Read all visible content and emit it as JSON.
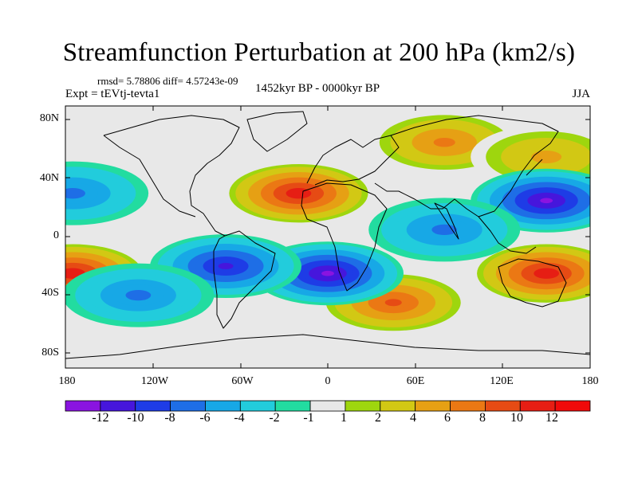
{
  "title": "Streamfunction Perturbation at 200 hPa (km2/s)",
  "stats": "rmsd= 5.78806 diff= 4.57243e-09",
  "experiment": "Expt = tEVtj-tevta1",
  "period": "1452kyr BP - 0000kyr BP",
  "season": "JJA",
  "lat_ticks": [
    "80N",
    "40N",
    "0",
    "40S",
    "80S"
  ],
  "lon_ticks": [
    "180",
    "120W",
    "60W",
    "0",
    "60E",
    "120E",
    "180"
  ],
  "colorbar": {
    "labels": [
      "-12",
      "-10",
      "-8",
      "-6",
      "-4",
      "-2",
      "-1",
      "1",
      "2",
      "4",
      "6",
      "8",
      "10",
      "12"
    ],
    "colors": [
      "#8a14e0",
      "#4616dc",
      "#1e3ce6",
      "#1e6ee6",
      "#17a8e6",
      "#22ccdc",
      "#22dca0",
      "#e8e8e8",
      "#9ed60e",
      "#d2c814",
      "#e6a014",
      "#eb7814",
      "#e64b14",
      "#e61e14",
      "#f00a0a"
    ]
  },
  "chart_data": {
    "type": "heatmap",
    "title": "Streamfunction Perturbation at 200 hPa (km2/s)",
    "x_axis": {
      "ticks": [
        "180",
        "120W",
        "60W",
        "0",
        "60E",
        "120E",
        "180"
      ],
      "range": [
        -180,
        180
      ]
    },
    "y_axis": {
      "ticks": [
        "80N",
        "40N",
        "0",
        "40S",
        "80S"
      ],
      "range": [
        -90,
        90
      ]
    },
    "levels": [
      -12,
      -10,
      -8,
      -6,
      -4,
      -2,
      -1,
      1,
      2,
      4,
      6,
      8,
      10,
      12
    ],
    "features": [
      {
        "name": "positive max",
        "lon": -20,
        "lat": 30,
        "value": 12
      },
      {
        "name": "positive max",
        "lon": 150,
        "lat": -25,
        "value": 12
      },
      {
        "name": "positive max",
        "lon": -175,
        "lat": -25,
        "value": 12
      },
      {
        "name": "positive",
        "lon": 80,
        "lat": 65,
        "value": 7
      },
      {
        "name": "positive",
        "lon": 45,
        "lat": -45,
        "value": 9
      },
      {
        "name": "positive",
        "lon": 150,
        "lat": 55,
        "value": 5
      },
      {
        "name": "negative min",
        "lon": 150,
        "lat": 25,
        "value": -12
      },
      {
        "name": "negative min",
        "lon": 0,
        "lat": -25,
        "value": -12
      },
      {
        "name": "negative",
        "lon": -70,
        "lat": -20,
        "value": -10
      },
      {
        "name": "negative",
        "lon": -175,
        "lat": 30,
        "value": -6
      },
      {
        "name": "negative",
        "lon": -130,
        "lat": -40,
        "value": -6
      },
      {
        "name": "negative",
        "lon": 80,
        "lat": 5,
        "value": -6
      }
    ]
  }
}
